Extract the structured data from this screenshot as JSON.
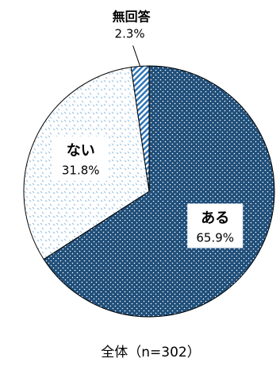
{
  "chart_data": {
    "type": "pie",
    "start_angle_deg": 0,
    "direction": "clockwise",
    "slices": [
      {
        "label": "ある",
        "value": 65.9,
        "value_label": "65.9%",
        "pattern": "dots-dark",
        "color": "#1f4e79"
      },
      {
        "label": "ない",
        "value": 31.8,
        "value_label": "31.8%",
        "pattern": "dots-light",
        "color": "#9dc3e6"
      },
      {
        "label": "無回答",
        "value": 2.3,
        "value_label": "2.3%",
        "pattern": "stripes",
        "color": "#2e75b6"
      }
    ],
    "footer": "全体（n=302）"
  },
  "colors": {
    "dark_fill": "#1f4e79",
    "light_dot": "#9dc3e6",
    "stripe": "#2e75b6",
    "outline": "#000000",
    "text": "#000000"
  }
}
